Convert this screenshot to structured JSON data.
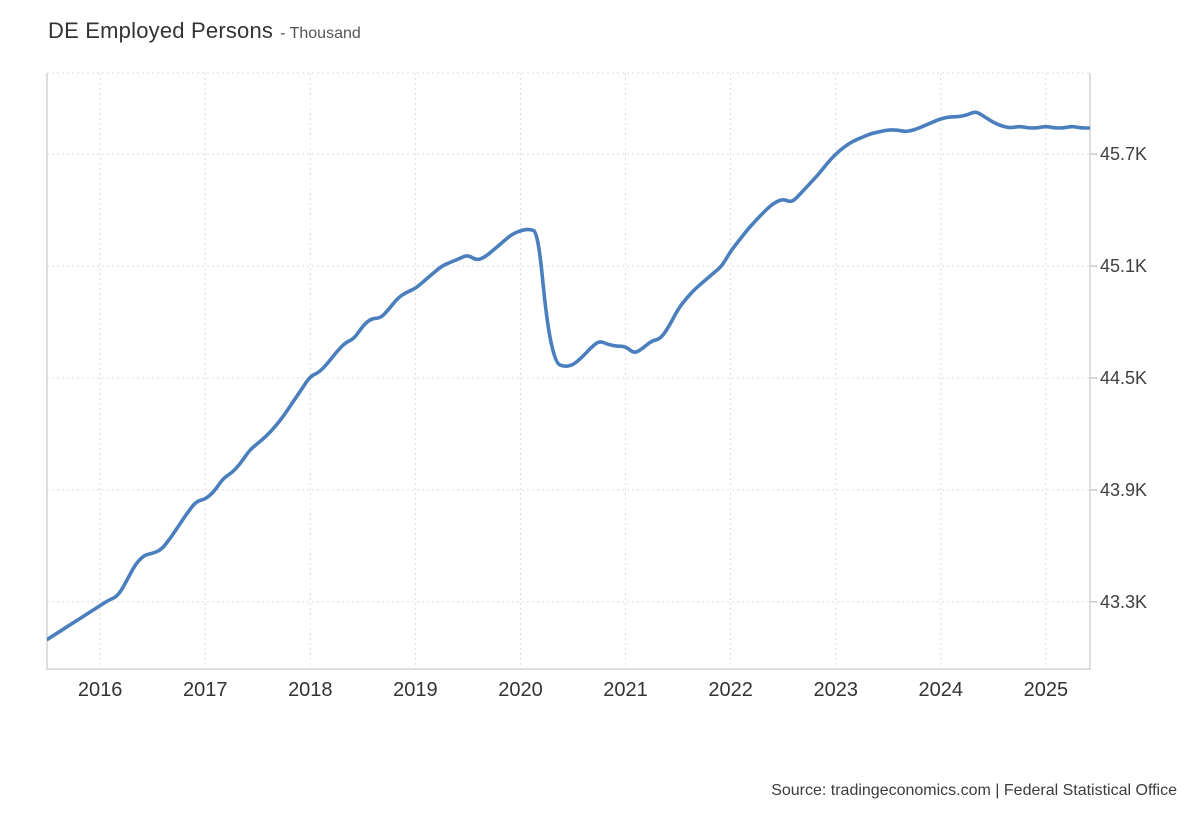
{
  "header": {
    "title": "DE Employed Persons",
    "subtitle": "- Thousand"
  },
  "footer": {
    "source": "Source: tradingeconomics.com | Federal Statistical Office"
  },
  "chart_data": {
    "type": "line",
    "title": "DE Employed Persons",
    "subtitle": "- Thousand",
    "unit": "Thousand",
    "line_color": "#4a7ebd",
    "grid": "dotted",
    "legend": "none",
    "x": {
      "start_year": 2015,
      "start_month": 7,
      "interval": "monthly"
    },
    "xlim": [
      2015.494,
      2025.42
    ],
    "ylim": [
      42.94,
      46.135
    ],
    "xticks": [
      {
        "value": 2016,
        "label": "2016"
      },
      {
        "value": 2017,
        "label": "2017"
      },
      {
        "value": 2018,
        "label": "2018"
      },
      {
        "value": 2019,
        "label": "2019"
      },
      {
        "value": 2020,
        "label": "2020"
      },
      {
        "value": 2021,
        "label": "2021"
      },
      {
        "value": 2022,
        "label": "2022"
      },
      {
        "value": 2023,
        "label": "2023"
      },
      {
        "value": 2024,
        "label": "2024"
      },
      {
        "value": 2025,
        "label": "2025"
      }
    ],
    "yticks": [
      {
        "value": 45.7,
        "label": "45.7K"
      },
      {
        "value": 45.1,
        "label": "45.1K"
      },
      {
        "value": 44.5,
        "label": "44.5K"
      },
      {
        "value": 43.9,
        "label": "43.9K"
      },
      {
        "value": 43.3,
        "label": "43.3K"
      }
    ],
    "values": [
      43.1,
      43.13,
      43.16,
      43.19,
      43.22,
      43.25,
      43.28,
      43.31,
      43.33,
      43.41,
      43.5,
      43.55,
      43.56,
      43.58,
      43.64,
      43.71,
      43.78,
      43.84,
      43.85,
      43.89,
      43.96,
      43.99,
      44.04,
      44.11,
      44.15,
      44.19,
      44.24,
      44.3,
      44.37,
      44.44,
      44.51,
      44.53,
      44.58,
      44.64,
      44.69,
      44.71,
      44.78,
      44.82,
      44.82,
      44.87,
      44.93,
      44.96,
      44.98,
      45.02,
      45.06,
      45.1,
      45.12,
      45.14,
      45.16,
      45.13,
      45.15,
      45.19,
      45.23,
      45.27,
      45.29,
      45.3,
      45.28,
      44.8,
      44.58,
      44.56,
      44.57,
      44.61,
      44.66,
      44.7,
      44.68,
      44.67,
      44.67,
      44.63,
      44.66,
      44.7,
      44.71,
      44.78,
      44.87,
      44.93,
      44.98,
      45.02,
      45.06,
      45.1,
      45.18,
      45.24,
      45.3,
      45.35,
      45.4,
      45.44,
      45.46,
      45.44,
      45.49,
      45.54,
      45.59,
      45.65,
      45.7,
      45.74,
      45.77,
      45.79,
      45.81,
      45.82,
      45.83,
      45.83,
      45.82,
      45.83,
      45.85,
      45.87,
      45.89,
      45.9,
      45.9,
      45.91,
      45.93,
      45.9,
      45.87,
      45.85,
      45.84,
      45.85,
      45.84,
      45.84,
      45.85,
      45.84,
      45.84,
      45.85,
      45.84,
      45.84
    ]
  }
}
